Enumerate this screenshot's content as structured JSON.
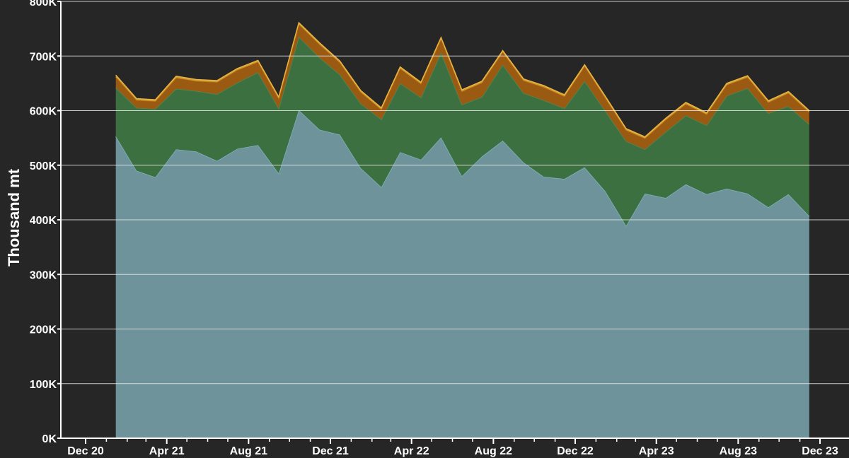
{
  "chart_data": {
    "type": "area",
    "stacked": true,
    "ylabel": "Thousand mt",
    "ylim": [
      0,
      800000
    ],
    "y_ticks": [
      {
        "value": 0,
        "label": "0K"
      },
      {
        "value": 100000,
        "label": "100K"
      },
      {
        "value": 200000,
        "label": "200K"
      },
      {
        "value": 300000,
        "label": "300K"
      },
      {
        "value": 400000,
        "label": "400K"
      },
      {
        "value": 500000,
        "label": "500K"
      },
      {
        "value": 600000,
        "label": "600K"
      },
      {
        "value": 700000,
        "label": "700K"
      },
      {
        "value": 800000,
        "label": "800K"
      }
    ],
    "x_range": [
      "2020-12-01",
      "2023-12-01"
    ],
    "x_ticks": [
      {
        "date": "2020-12-01",
        "label": "Dec 20"
      },
      {
        "date": "2021-04-01",
        "label": "Apr 21"
      },
      {
        "date": "2021-08-01",
        "label": "Aug 21"
      },
      {
        "date": "2021-12-01",
        "label": "Dec 21"
      },
      {
        "date": "2022-04-01",
        "label": "Apr 22"
      },
      {
        "date": "2022-08-01",
        "label": "Aug 22"
      },
      {
        "date": "2022-12-01",
        "label": "Dec 22"
      },
      {
        "date": "2023-04-01",
        "label": "Apr 23"
      },
      {
        "date": "2023-08-01",
        "label": "Aug 23"
      },
      {
        "date": "2023-12-01",
        "label": "Dec 23"
      }
    ],
    "x": [
      "2021-01",
      "2021-02",
      "2021-03",
      "2021-04",
      "2021-05",
      "2021-06",
      "2021-07",
      "2021-08",
      "2021-09",
      "2021-10",
      "2021-11",
      "2021-12",
      "2022-01",
      "2022-02",
      "2022-03",
      "2022-04",
      "2022-05",
      "2022-06",
      "2022-07",
      "2022-08",
      "2022-09",
      "2022-10",
      "2022-11",
      "2022-12",
      "2023-01",
      "2023-02",
      "2023-03",
      "2023-04",
      "2023-05",
      "2023-06",
      "2023-07",
      "2023-08",
      "2023-09",
      "2023-10",
      "2023-11"
    ],
    "series": [
      {
        "color": "#6f939b",
        "line_color": "#7fb4c0",
        "values": [
          553000,
          490000,
          478000,
          529000,
          525000,
          508000,
          530000,
          537000,
          485000,
          601000,
          565000,
          556000,
          495000,
          460000,
          524000,
          510000,
          551000,
          480000,
          516000,
          545000,
          505000,
          479000,
          475000,
          496000,
          452000,
          389000,
          448000,
          440000,
          465000,
          447000,
          457000,
          448000,
          423000,
          447000,
          407000
        ]
      },
      {
        "color": "#3d7040",
        "line_color": "#4e8a52",
        "values": [
          89000,
          115000,
          125000,
          111000,
          111000,
          122000,
          121000,
          133000,
          119000,
          134000,
          132000,
          110000,
          118000,
          124000,
          126000,
          114000,
          155000,
          131000,
          109000,
          139000,
          127000,
          140000,
          129000,
          158000,
          147000,
          155000,
          81000,
          121000,
          126000,
          126000,
          170000,
          193000,
          172000,
          161000,
          168000
        ]
      },
      {
        "color": "#9a5a12",
        "line_color": "#b06a18",
        "values": [
          20000,
          14000,
          14000,
          20000,
          18000,
          22000,
          23000,
          19000,
          18000,
          23000,
          24000,
          22000,
          21000,
          18000,
          27000,
          25000,
          25000,
          24000,
          26000,
          23000,
          23000,
          24000,
          22000,
          27000,
          24000,
          20000,
          20000,
          22000,
          21000,
          20000,
          20000,
          20000,
          20000,
          24000,
          22000
        ]
      },
      {
        "color": "#d19a2c",
        "line_color": "#e8b441",
        "values": [
          3000,
          3000,
          3000,
          3000,
          3000,
          3000,
          3000,
          3000,
          3000,
          3000,
          3000,
          3000,
          3000,
          3000,
          3000,
          3000,
          3000,
          3000,
          3000,
          3000,
          3000,
          3000,
          3000,
          3000,
          3000,
          3000,
          3000,
          3000,
          3000,
          3000,
          3000,
          3000,
          3000,
          3000,
          3000
        ]
      }
    ],
    "grid": true,
    "legend": "none"
  }
}
